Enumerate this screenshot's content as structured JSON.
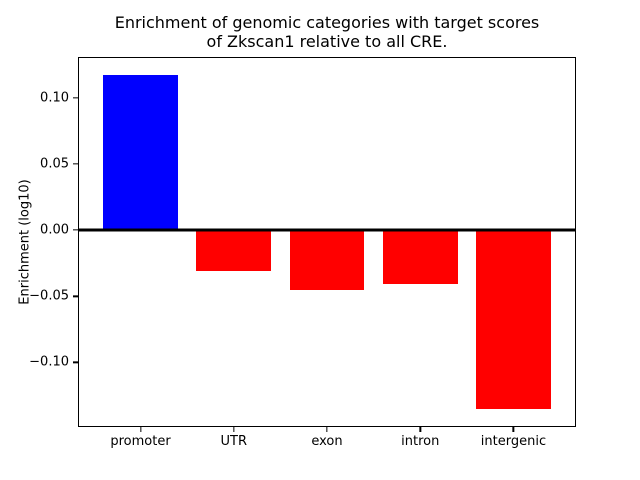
{
  "chart_data": {
    "type": "bar",
    "title": "Enrichment of genomic categories with target scores\nof Zkscan1 relative to all CRE.",
    "ylabel": "Enrichment (log10)",
    "xlabel": "",
    "categories": [
      "promoter",
      "UTR",
      "exon",
      "intron",
      "intergenic"
    ],
    "values": [
      0.117,
      -0.031,
      -0.045,
      -0.041,
      -0.135
    ],
    "bar_colors": [
      "#0000ff",
      "#ff0000",
      "#ff0000",
      "#ff0000",
      "#ff0000"
    ],
    "positive_color": "#0000ff",
    "negative_color": "#ff0000",
    "yticks": [
      0.1,
      0.05,
      0.0,
      -0.05,
      -0.1
    ],
    "ytick_labels": [
      "0.10",
      "0.05",
      "0.00",
      "−0.05",
      "−0.10"
    ],
    "ylim": [
      -0.148,
      0.13
    ],
    "xlim": [
      -0.66,
      4.66
    ],
    "bar_width": 0.8,
    "grid": false,
    "legend": null,
    "zero_line": true,
    "background_color": "#ffffff"
  }
}
